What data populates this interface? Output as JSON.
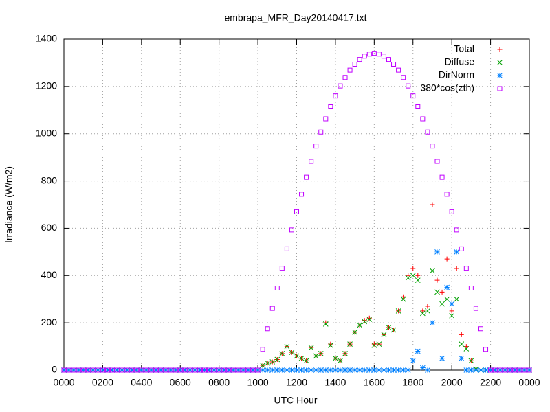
{
  "chart_data": {
    "type": "scatter",
    "title": "embrapa_MFR_Day20140417.txt",
    "x_label": "UTC Hour",
    "y_label": "Irradiance (W/m2)",
    "grid": true,
    "legend": "upper right",
    "xlim": [
      0,
      24
    ],
    "ylim": [
      0,
      1400
    ],
    "xticks": [
      {
        "value": 0,
        "label": "0000"
      },
      {
        "value": 2,
        "label": "0200"
      },
      {
        "value": 4,
        "label": "0400"
      },
      {
        "value": 6,
        "label": "0600"
      },
      {
        "value": 8,
        "label": "0800"
      },
      {
        "value": 10,
        "label": "1000"
      },
      {
        "value": 12,
        "label": "1200"
      },
      {
        "value": 14,
        "label": "1400"
      },
      {
        "value": 16,
        "label": "1600"
      },
      {
        "value": 18,
        "label": "1800"
      },
      {
        "value": 20,
        "label": "2000"
      },
      {
        "value": 22,
        "label": "2200"
      },
      {
        "value": 24,
        "label": "0000"
      }
    ],
    "yticks": [
      0,
      200,
      400,
      600,
      800,
      1000,
      1200,
      1400
    ],
    "x": [
      0,
      0.25,
      0.5,
      0.75,
      1,
      1.25,
      1.5,
      1.75,
      2,
      2.25,
      2.5,
      2.75,
      3,
      3.25,
      3.5,
      3.75,
      4,
      4.25,
      4.5,
      4.75,
      5,
      5.25,
      5.5,
      5.75,
      6,
      6.25,
      6.5,
      6.75,
      7,
      7.25,
      7.5,
      7.75,
      8,
      8.25,
      8.5,
      8.75,
      9,
      9.25,
      9.5,
      9.75,
      10,
      10.25,
      10.5,
      10.75,
      11,
      11.25,
      11.5,
      11.75,
      12,
      12.25,
      12.5,
      12.75,
      13,
      13.25,
      13.5,
      13.75,
      14,
      14.25,
      14.5,
      14.75,
      15,
      15.25,
      15.5,
      15.75,
      16,
      16.25,
      16.5,
      16.75,
      17,
      17.25,
      17.5,
      17.75,
      18,
      18.25,
      18.5,
      18.75,
      19,
      19.25,
      19.5,
      19.75,
      20,
      20.25,
      20.5,
      20.75,
      21,
      21.25,
      21.5,
      21.75,
      22,
      22.25,
      22.5,
      22.75,
      23,
      23.25,
      23.5,
      23.75,
      24
    ],
    "series": [
      {
        "name": "Total",
        "color": "#ff0000",
        "marker": "plus",
        "values": [
          0,
          0,
          0,
          0,
          0,
          0,
          0,
          0,
          0,
          0,
          0,
          0,
          0,
          0,
          0,
          0,
          0,
          0,
          0,
          0,
          0,
          0,
          0,
          0,
          0,
          0,
          0,
          0,
          0,
          0,
          0,
          0,
          0,
          0,
          0,
          0,
          0,
          0,
          0,
          0,
          0,
          20,
          30,
          35,
          45,
          70,
          100,
          75,
          60,
          50,
          40,
          95,
          60,
          70,
          200,
          110,
          50,
          40,
          70,
          110,
          160,
          190,
          210,
          220,
          110,
          110,
          150,
          180,
          170,
          250,
          310,
          400,
          430,
          400,
          250,
          270,
          700,
          380,
          330,
          470,
          250,
          430,
          150,
          100,
          40,
          5,
          0,
          0,
          0,
          0,
          0,
          0,
          0,
          0,
          0,
          0,
          0
        ]
      },
      {
        "name": "Diffuse",
        "color": "#00a000",
        "marker": "cross",
        "values": [
          0,
          0,
          0,
          0,
          0,
          0,
          0,
          0,
          0,
          0,
          0,
          0,
          0,
          0,
          0,
          0,
          0,
          0,
          0,
          0,
          0,
          0,
          0,
          0,
          0,
          0,
          0,
          0,
          0,
          0,
          0,
          0,
          0,
          0,
          0,
          0,
          0,
          0,
          0,
          0,
          0,
          20,
          30,
          35,
          45,
          70,
          100,
          75,
          60,
          50,
          40,
          95,
          60,
          70,
          195,
          105,
          50,
          40,
          70,
          110,
          160,
          190,
          205,
          215,
          105,
          110,
          150,
          180,
          170,
          250,
          300,
          390,
          400,
          380,
          240,
          250,
          420,
          330,
          280,
          300,
          230,
          300,
          110,
          90,
          40,
          5,
          0,
          0,
          0,
          0,
          0,
          0,
          0,
          0,
          0,
          0,
          0
        ]
      },
      {
        "name": "DirNorm",
        "color": "#0080ff",
        "marker": "star",
        "values": [
          0,
          0,
          0,
          0,
          0,
          0,
          0,
          0,
          0,
          0,
          0,
          0,
          0,
          0,
          0,
          0,
          0,
          0,
          0,
          0,
          0,
          0,
          0,
          0,
          0,
          0,
          0,
          0,
          0,
          0,
          0,
          0,
          0,
          0,
          0,
          0,
          0,
          0,
          0,
          0,
          0,
          0,
          0,
          0,
          0,
          0,
          0,
          0,
          0,
          0,
          0,
          0,
          0,
          0,
          0,
          0,
          0,
          0,
          0,
          0,
          0,
          0,
          0,
          0,
          0,
          0,
          0,
          0,
          0,
          0,
          0,
          0,
          40,
          80,
          10,
          0,
          200,
          500,
          50,
          350,
          280,
          500,
          50,
          0,
          0,
          0,
          0,
          0,
          0,
          0,
          0,
          0,
          0,
          0,
          0,
          0,
          0
        ]
      },
      {
        "name": "380*cos(zth)",
        "color": "#c000ff",
        "marker": "square",
        "values": [
          0,
          0,
          0,
          0,
          0,
          0,
          0,
          0,
          0,
          0,
          0,
          0,
          0,
          0,
          0,
          0,
          0,
          0,
          0,
          0,
          0,
          0,
          0,
          0,
          0,
          0,
          0,
          0,
          0,
          0,
          0,
          0,
          0,
          0,
          0,
          0,
          0,
          0,
          0,
          0,
          0,
          88,
          175,
          261,
          347,
          431,
          513,
          593,
          670,
          744,
          816,
          883,
          948,
          1007,
          1063,
          1114,
          1160,
          1202,
          1238,
          1269,
          1294,
          1314,
          1328,
          1337,
          1340,
          1337,
          1328,
          1314,
          1294,
          1269,
          1238,
          1202,
          1160,
          1114,
          1063,
          1007,
          948,
          883,
          816,
          744,
          670,
          593,
          513,
          431,
          347,
          261,
          175,
          88,
          0,
          0,
          0,
          0,
          0,
          0,
          0,
          0,
          0
        ]
      }
    ]
  }
}
